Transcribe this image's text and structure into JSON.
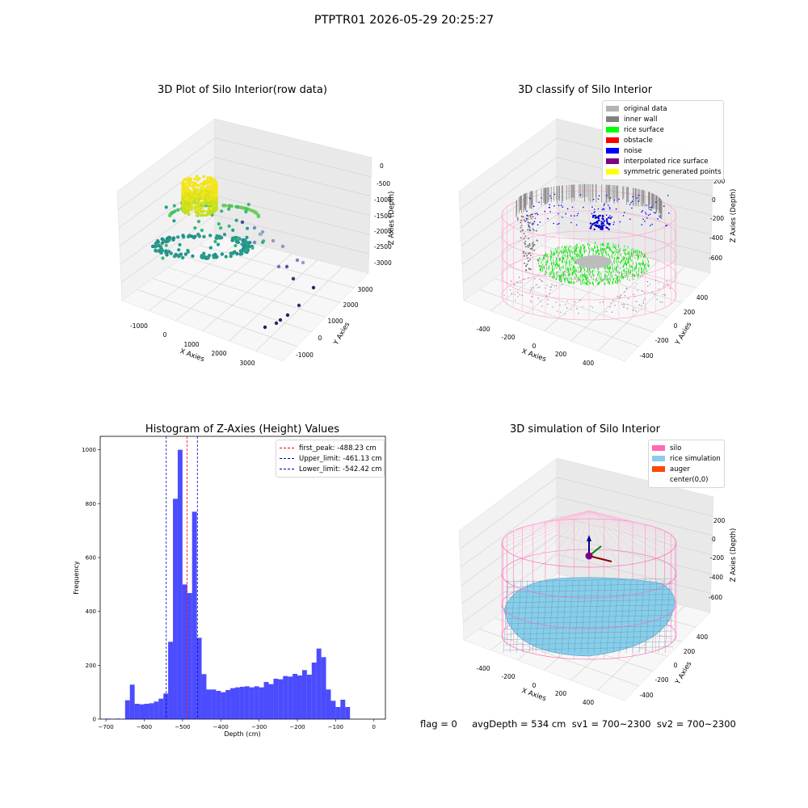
{
  "suptitle": "PTPTR01 2026-05-29 20:25:27",
  "panel1": {
    "title": "3D Plot of Silo Interior(row data)",
    "xlabel": "X Axies",
    "ylabel": "Y Axies",
    "zlabel": "Z Axies (Depth)",
    "xticks": [
      "-1000",
      "0",
      "1000",
      "2000",
      "3000"
    ],
    "yticks": [
      "-1000",
      "0",
      "1000",
      "2000",
      "3000"
    ],
    "zticks": [
      "0",
      "-500",
      "-1000",
      "-1500",
      "-2000",
      "-2500",
      "-3000"
    ]
  },
  "panel2": {
    "title": "3D classify of Silo Interior",
    "xlabel": "X Axies",
    "ylabel": "Y Axies",
    "zlabel": "Z Axies (Depth)",
    "xticks": [
      "-400",
      "-200",
      "0",
      "200",
      "400"
    ],
    "yticks": [
      "-400",
      "-200",
      "0",
      "200",
      "400"
    ],
    "zticks": [
      "200",
      "0",
      "-200",
      "-400",
      "-600"
    ],
    "legend": [
      {
        "label": "original data",
        "color": "#b3b3b3"
      },
      {
        "label": "inner wall",
        "color": "#808080"
      },
      {
        "label": "rice surface",
        "color": "#00ff00"
      },
      {
        "label": "obstacle",
        "color": "#ff0000"
      },
      {
        "label": "noise",
        "color": "#0000ff"
      },
      {
        "label": "interpolated rice surface",
        "color": "#800080"
      },
      {
        "label": "symmetric generated points",
        "color": "#ffff00"
      }
    ]
  },
  "panel3": {
    "title": "Histogram of Z-Axies (Height) Values",
    "xlabel": "Depth (cm)",
    "ylabel": "Frequency",
    "legend": [
      {
        "label": "first_peak: -488.23 cm",
        "color": "#ff0000"
      },
      {
        "label": "Upper_limit: -461.13 cm",
        "color": "#0000aa"
      },
      {
        "label": "Lower_limit: -542.42 cm",
        "color": "#0000aa"
      }
    ]
  },
  "panel4": {
    "title": "3D simulation of Silo Interior",
    "xlabel": "X Axies",
    "ylabel": "Y Axies",
    "zlabel": "Z Axies (Depth)",
    "xticks": [
      "-400",
      "-200",
      "0",
      "200",
      "400"
    ],
    "yticks": [
      "-400",
      "-200",
      "0",
      "200",
      "400"
    ],
    "zticks": [
      "200",
      "0",
      "-200",
      "-400",
      "-600"
    ],
    "legend": [
      {
        "label": "silo",
        "color": "#ff69b4"
      },
      {
        "label": "rice simulation",
        "color": "#87ceeb"
      },
      {
        "label": "auger",
        "color": "#ff4500"
      },
      {
        "label": "center(0,0)",
        "color": "#ffffff"
      }
    ]
  },
  "status_text": "flag = 0     avgDepth = 534 cm  sv1 = 700~2300  sv2 = 700~2300",
  "chart_data": [
    {
      "type": "scatter",
      "title": "3D Plot of Silo Interior(row data)",
      "xlabel": "X Axies",
      "ylabel": "Y Axies",
      "zlabel": "Z Axies (Depth)",
      "xlim": [
        -1500,
        3500
      ],
      "ylim": [
        -1500,
        3500
      ],
      "zlim": [
        -3500,
        200
      ]
    },
    {
      "type": "scatter",
      "title": "3D classify of Silo Interior",
      "xlabel": "X Axies",
      "ylabel": "Y Axies",
      "zlabel": "Z Axies (Depth)",
      "xlim": [
        -500,
        500
      ],
      "ylim": [
        -500,
        500
      ],
      "zlim": [
        -700,
        250
      ]
    },
    {
      "type": "bar",
      "title": "Histogram of Z-Axies (Height) Values",
      "xlabel": "Depth (cm)",
      "ylabel": "Frequency",
      "xlim": [
        -715,
        30
      ],
      "ylim": [
        0,
        1050
      ],
      "xticks": [
        -700,
        -600,
        -500,
        -400,
        -300,
        -200,
        -100,
        0
      ],
      "yticks": [
        0,
        200,
        400,
        600,
        800,
        1000
      ],
      "bin_width": 12.5,
      "bin_start": -712.5,
      "values": [
        0,
        2,
        0,
        2,
        0,
        70,
        128,
        57,
        55,
        57,
        59,
        65,
        76,
        95,
        287,
        818,
        1000,
        500,
        468,
        770,
        302,
        167,
        110,
        110,
        105,
        100,
        108,
        115,
        118,
        120,
        122,
        118,
        122,
        118,
        138,
        130,
        150,
        148,
        160,
        158,
        168,
        162,
        182,
        165,
        210,
        262,
        230,
        110,
        68,
        45,
        72,
        45
      ],
      "color": "#0000ff",
      "vlines": [
        {
          "name": "first_peak",
          "value": -488.23,
          "color": "#ff0000"
        },
        {
          "name": "Upper_limit",
          "value": -461.13,
          "color": "#0000aa"
        },
        {
          "name": "Lower_limit",
          "value": -542.42,
          "color": "#0000aa"
        }
      ]
    },
    {
      "type": "area",
      "title": "3D simulation of Silo Interior",
      "xlabel": "X Axies",
      "ylabel": "Y Axies",
      "zlabel": "Z Axies (Depth)",
      "xlim": [
        -500,
        500
      ],
      "ylim": [
        -500,
        500
      ],
      "zlim": [
        -700,
        250
      ]
    }
  ]
}
